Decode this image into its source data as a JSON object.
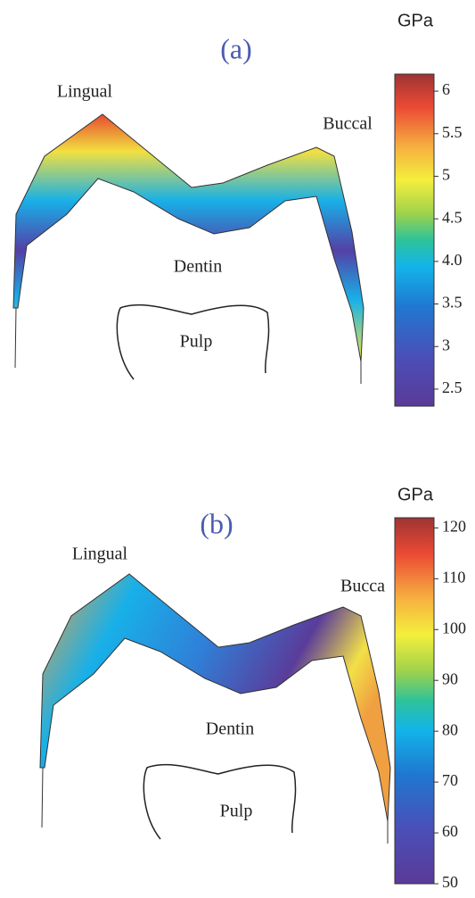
{
  "panels": [
    {
      "label": "(a)",
      "unit": "GPa",
      "lingual": "Lingual",
      "buccal": "Buccal",
      "dentin": "Dentin",
      "pulp": "Pulp",
      "colorbar": {
        "lim": [
          2.3,
          6.2
        ],
        "ticks": [
          6,
          5.5,
          5,
          4.5,
          {
            "value": 4,
            "label": "4.0"
          },
          3.5,
          3,
          2.5
        ]
      }
    },
    {
      "label": "(b)",
      "unit": "GPa",
      "lingual": "Lingual",
      "buccal": "Bucca",
      "dentin": "Dentin",
      "pulp": "Pulp",
      "colorbar": {
        "lim": [
          50,
          122
        ],
        "ticks": [
          120,
          110,
          100,
          90,
          80,
          70,
          60,
          50
        ]
      }
    }
  ]
}
